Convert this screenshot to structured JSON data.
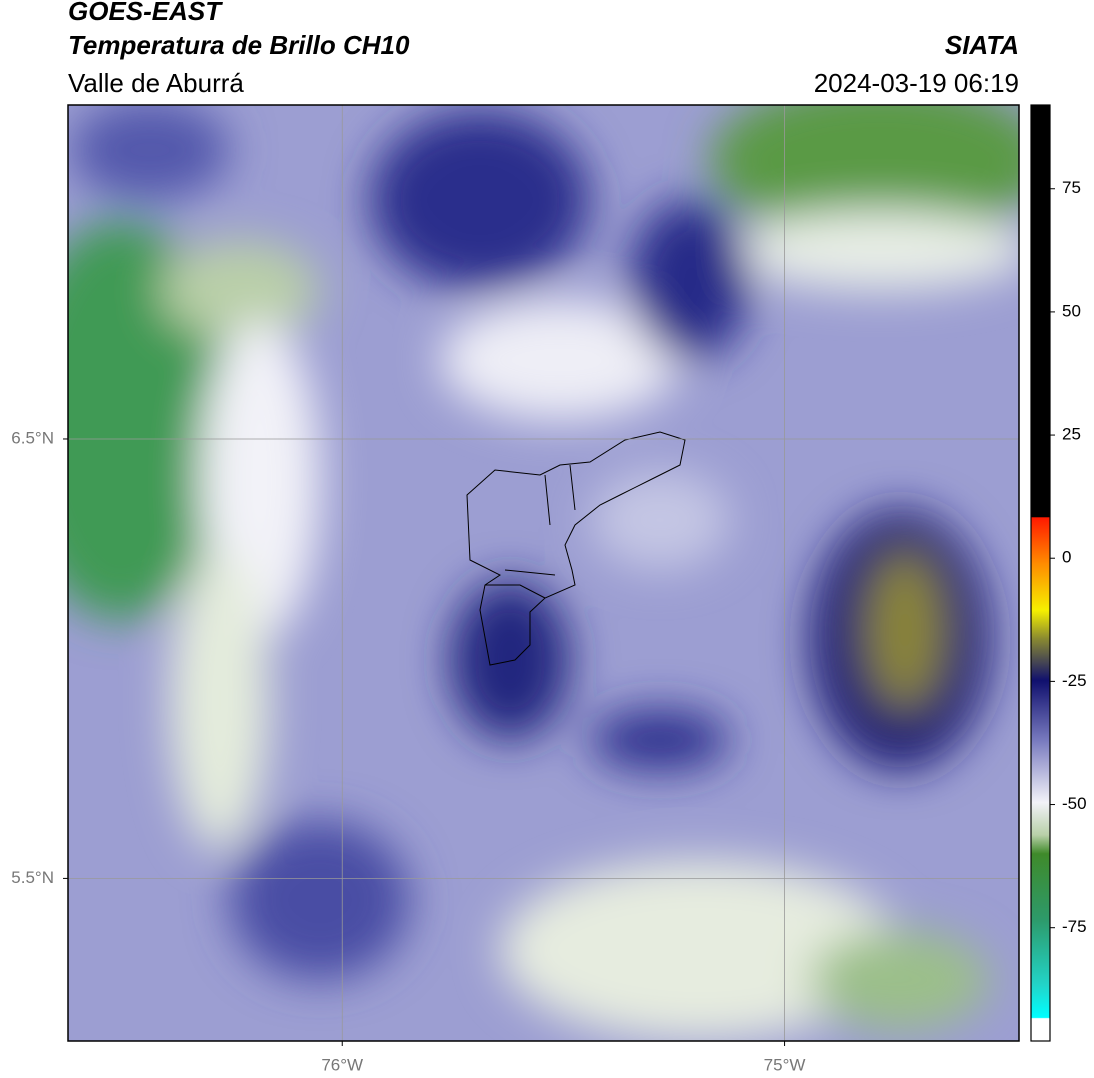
{
  "header": {
    "satellite": "GOES-EAST",
    "product": "Temperatura de Brillo CH10",
    "region": "Valle de Aburrá",
    "agency": "SIATA",
    "datetime": "2024-03-19 06:19"
  },
  "map": {
    "xlim": [
      -76.62,
      -74.47
    ],
    "ylim": [
      5.13,
      7.26
    ],
    "xticks": [
      {
        "value": -76,
        "label": "76°W"
      },
      {
        "value": -75,
        "label": "75°W"
      }
    ],
    "yticks": [
      {
        "value": 6.5,
        "label": "6.5°N"
      },
      {
        "value": 5.5,
        "label": "5.5°N"
      }
    ],
    "grid": true
  },
  "colorbar": {
    "ylim": [
      -98,
      92
    ],
    "yticks": [
      75,
      50,
      25,
      0,
      -25,
      -50,
      -75
    ]
  }
}
